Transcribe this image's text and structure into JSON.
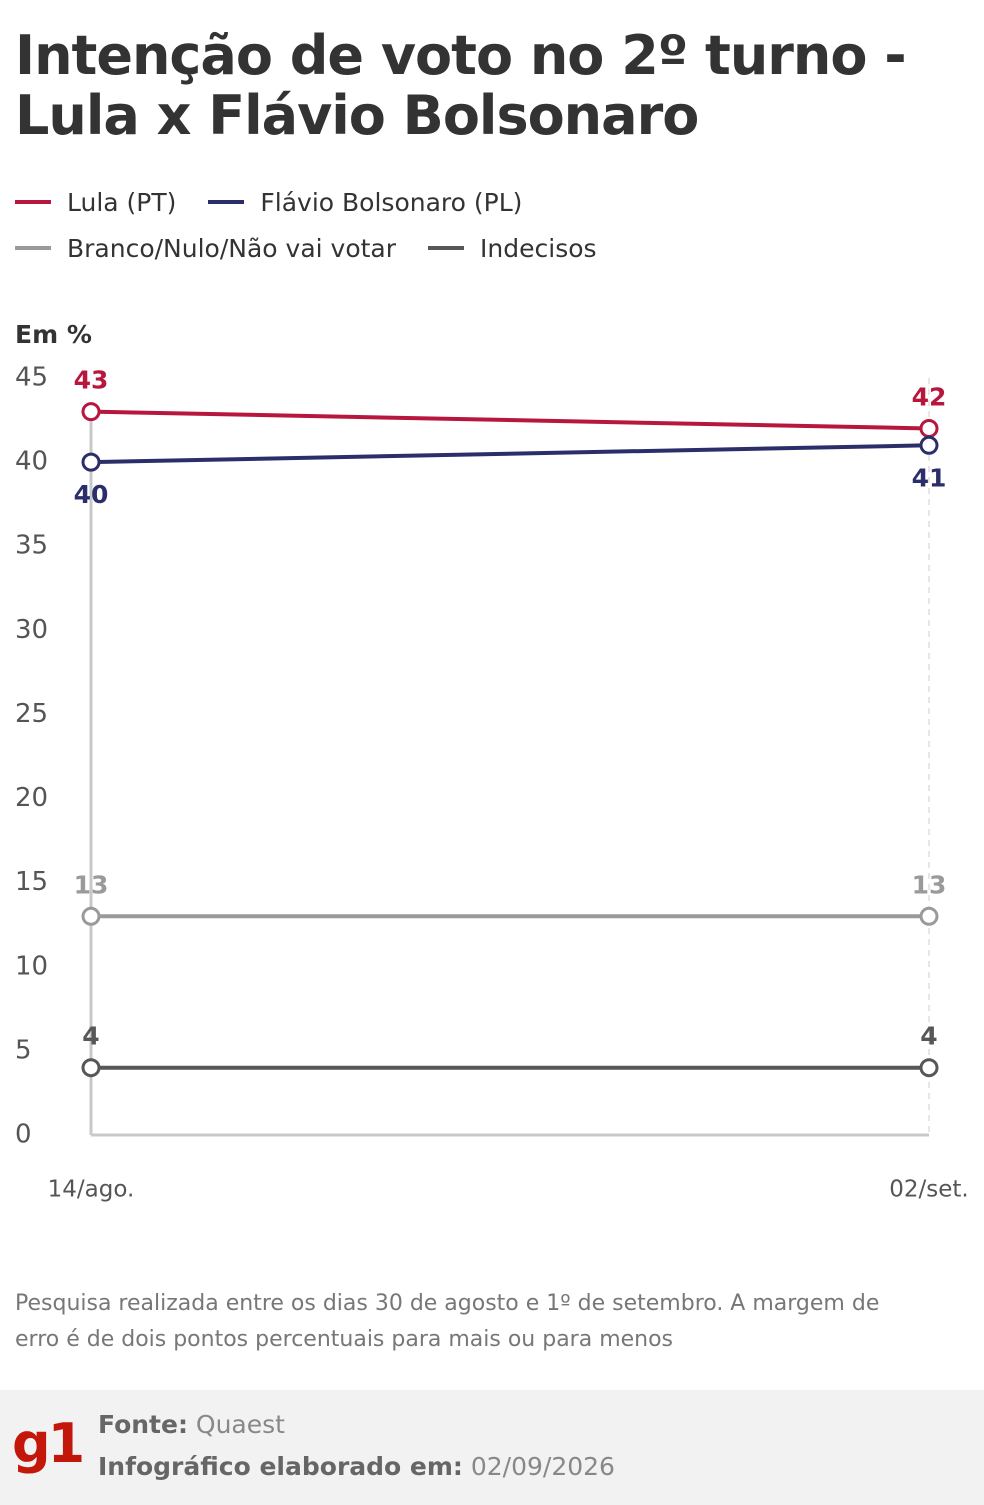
{
  "chart_data": {
    "type": "line",
    "title": "Intenção de voto no 2º turno - Lula x Flávio Bolsonaro",
    "y_label": "Em %",
    "categories": [
      "14/ago.",
      "02/set."
    ],
    "series": [
      {
        "name": "Lula (PT)",
        "color": "#b8173d",
        "values": [
          43,
          42
        ]
      },
      {
        "name": "Flávio Bolsonaro (PL)",
        "color": "#2c2e6a",
        "values": [
          40,
          41
        ]
      },
      {
        "name": "Branco/Nulo/Não vai votar",
        "color": "#9a9a9a",
        "values": [
          13,
          13
        ]
      },
      {
        "name": "Indecisos",
        "color": "#575757",
        "values": [
          4,
          4
        ]
      }
    ],
    "ylim": [
      0,
      45
    ],
    "yticks": [
      0,
      5,
      10,
      15,
      20,
      25,
      30,
      35,
      40,
      45
    ],
    "note": "Pesquisa realizada entre os dias 30 de agosto e 1º de setembro. A margem de erro é de dois pontos percentuais para mais ou para menos",
    "logo": "g1",
    "source_label": "Fonte:",
    "source": "Quaest",
    "date_label": "Infográfico elaborado em:",
    "date": "02/09/2026"
  }
}
